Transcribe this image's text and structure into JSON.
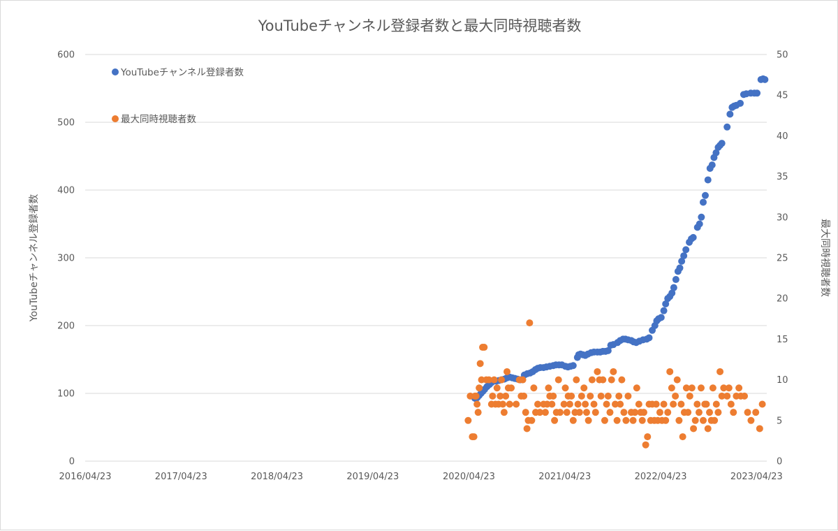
{
  "chart_data": {
    "type": "scatter",
    "title": "YouTubeチャンネル登録者数と最大同時視聴者数",
    "ylabel": "YouTubeチャンネル登録者数",
    "y2label": "最大同時視聴者数",
    "ylim": [
      0,
      600
    ],
    "y2lim": [
      0,
      50
    ],
    "yticks": [
      "0",
      "100",
      "200",
      "300",
      "400",
      "500",
      "600"
    ],
    "y2ticks": [
      "0",
      "5",
      "10",
      "15",
      "20",
      "25",
      "30",
      "35",
      "40",
      "45",
      "50"
    ],
    "xlim": [
      "2016-04-23",
      "2023-06-01"
    ],
    "xticks": [
      "2016/04/23",
      "2017/04/23",
      "2018/04/23",
      "2019/04/23",
      "2020/04/23",
      "2021/04/23",
      "2022/04/23",
      "2023/04/23"
    ],
    "xtick_dates": [
      "2016-04-23",
      "2017-04-23",
      "2018-04-23",
      "2019-04-23",
      "2020-04-23",
      "2021-04-23",
      "2022-04-23",
      "2023-04-23"
    ],
    "legend_position": "top-left",
    "grid": "horizontal",
    "series": [
      {
        "name": "YouTubeチャンネル登録者数",
        "color": "#4472c4",
        "axis": "left",
        "points": [
          [
            "2020-05-15",
            93
          ],
          [
            "2020-05-20",
            92
          ],
          [
            "2020-05-25",
            94
          ],
          [
            "2020-06-01",
            97
          ],
          [
            "2020-06-08",
            100
          ],
          [
            "2020-06-15",
            103
          ],
          [
            "2020-06-22",
            106
          ],
          [
            "2020-07-01",
            110
          ],
          [
            "2020-07-10",
            113
          ],
          [
            "2020-07-18",
            116
          ],
          [
            "2020-07-25",
            118
          ],
          [
            "2020-08-05",
            118
          ],
          [
            "2020-08-15",
            119
          ],
          [
            "2020-08-25",
            120
          ],
          [
            "2020-09-05",
            121
          ],
          [
            "2020-09-15",
            123
          ],
          [
            "2020-09-25",
            124
          ],
          [
            "2020-10-05",
            123
          ],
          [
            "2020-10-15",
            122
          ],
          [
            "2020-10-25",
            121
          ],
          [
            "2020-11-05",
            120
          ],
          [
            "2020-11-20",
            127
          ],
          [
            "2020-12-01",
            129
          ],
          [
            "2020-12-12",
            130
          ],
          [
            "2020-12-22",
            132
          ],
          [
            "2021-01-01",
            135
          ],
          [
            "2021-01-10",
            137
          ],
          [
            "2021-01-20",
            138
          ],
          [
            "2021-02-01",
            138
          ],
          [
            "2021-02-12",
            139
          ],
          [
            "2021-02-25",
            140
          ],
          [
            "2021-03-10",
            141
          ],
          [
            "2021-03-20",
            142
          ],
          [
            "2021-04-01",
            142
          ],
          [
            "2021-04-12",
            142
          ],
          [
            "2021-04-25",
            140
          ],
          [
            "2021-05-05",
            139
          ],
          [
            "2021-05-15",
            140
          ],
          [
            "2021-05-25",
            141
          ],
          [
            "2021-06-10",
            153
          ],
          [
            "2021-06-15",
            157
          ],
          [
            "2021-06-22",
            158
          ],
          [
            "2021-07-01",
            157
          ],
          [
            "2021-07-10",
            156
          ],
          [
            "2021-07-20",
            158
          ],
          [
            "2021-08-01",
            160
          ],
          [
            "2021-08-12",
            161
          ],
          [
            "2021-08-25",
            161
          ],
          [
            "2021-09-05",
            161
          ],
          [
            "2021-09-15",
            162
          ],
          [
            "2021-09-25",
            162
          ],
          [
            "2021-10-05",
            163
          ],
          [
            "2021-10-15",
            171
          ],
          [
            "2021-10-25",
            172
          ],
          [
            "2021-11-10",
            175
          ],
          [
            "2021-11-20",
            178
          ],
          [
            "2021-12-01",
            180
          ],
          [
            "2021-12-10",
            180
          ],
          [
            "2021-12-20",
            179
          ],
          [
            "2022-01-01",
            178
          ],
          [
            "2022-01-10",
            176
          ],
          [
            "2022-01-20",
            175
          ],
          [
            "2022-02-01",
            177
          ],
          [
            "2022-02-15",
            179
          ],
          [
            "2022-03-01",
            180
          ],
          [
            "2022-03-10",
            182
          ],
          [
            "2022-03-22",
            193
          ],
          [
            "2022-04-01",
            200
          ],
          [
            "2022-04-08",
            207
          ],
          [
            "2022-04-15",
            210
          ],
          [
            "2022-04-25",
            212
          ],
          [
            "2022-05-05",
            222
          ],
          [
            "2022-05-12",
            232
          ],
          [
            "2022-05-20",
            240
          ],
          [
            "2022-05-28",
            243
          ],
          [
            "2022-06-05",
            248
          ],
          [
            "2022-06-12",
            256
          ],
          [
            "2022-06-20",
            268
          ],
          [
            "2022-06-28",
            280
          ],
          [
            "2022-07-05",
            285
          ],
          [
            "2022-07-12",
            295
          ],
          [
            "2022-07-20",
            303
          ],
          [
            "2022-07-28",
            312
          ],
          [
            "2022-08-10",
            323
          ],
          [
            "2022-08-18",
            328
          ],
          [
            "2022-08-25",
            330
          ],
          [
            "2022-09-10",
            345
          ],
          [
            "2022-09-18",
            350
          ],
          [
            "2022-09-25",
            360
          ],
          [
            "2022-10-02",
            382
          ],
          [
            "2022-10-10",
            392
          ],
          [
            "2022-10-20",
            415
          ],
          [
            "2022-10-28",
            432
          ],
          [
            "2022-11-05",
            437
          ],
          [
            "2022-11-12",
            448
          ],
          [
            "2022-11-20",
            455
          ],
          [
            "2022-11-28",
            463
          ],
          [
            "2022-12-05",
            466
          ],
          [
            "2022-12-12",
            469
          ],
          [
            "2023-01-01",
            493
          ],
          [
            "2023-01-12",
            512
          ],
          [
            "2023-01-20",
            522
          ],
          [
            "2023-01-28",
            524
          ],
          [
            "2023-02-05",
            525
          ],
          [
            "2023-02-20",
            528
          ],
          [
            "2023-03-05",
            541
          ],
          [
            "2023-03-15",
            542
          ],
          [
            "2023-04-01",
            543
          ],
          [
            "2023-04-15",
            543
          ],
          [
            "2023-04-25",
            543
          ],
          [
            "2023-05-10",
            563
          ],
          [
            "2023-05-18",
            564
          ],
          [
            "2023-05-25",
            563
          ]
        ]
      },
      {
        "name": "最大同時視聴者数",
        "color": "#ed7d31",
        "axis": "right",
        "points": [
          [
            "2020-04-20",
            5
          ],
          [
            "2020-04-28",
            8
          ],
          [
            "2020-05-06",
            3
          ],
          [
            "2020-05-12",
            3
          ],
          [
            "2020-05-16",
            8
          ],
          [
            "2020-05-20",
            8
          ],
          [
            "2020-05-24",
            7
          ],
          [
            "2020-05-28",
            6
          ],
          [
            "2020-06-01",
            9
          ],
          [
            "2020-06-05",
            12
          ],
          [
            "2020-06-10",
            10
          ],
          [
            "2020-06-14",
            14
          ],
          [
            "2020-06-20",
            14
          ],
          [
            "2020-06-28",
            10
          ],
          [
            "2020-07-08",
            10
          ],
          [
            "2020-07-18",
            7
          ],
          [
            "2020-07-22",
            8
          ],
          [
            "2020-07-28",
            10
          ],
          [
            "2020-08-02",
            7
          ],
          [
            "2020-08-08",
            9
          ],
          [
            "2020-08-14",
            7
          ],
          [
            "2020-08-20",
            8
          ],
          [
            "2020-08-25",
            10
          ],
          [
            "2020-08-30",
            7
          ],
          [
            "2020-09-04",
            6
          ],
          [
            "2020-09-10",
            8
          ],
          [
            "2020-09-15",
            11
          ],
          [
            "2020-09-20",
            9
          ],
          [
            "2020-09-25",
            7
          ],
          [
            "2020-10-01",
            9
          ],
          [
            "2020-10-20",
            7
          ],
          [
            "2020-11-01",
            10
          ],
          [
            "2020-11-08",
            8
          ],
          [
            "2020-11-14",
            10
          ],
          [
            "2020-11-18",
            8
          ],
          [
            "2020-11-25",
            6
          ],
          [
            "2020-11-30",
            4
          ],
          [
            "2020-12-05",
            5
          ],
          [
            "2020-12-10",
            17
          ],
          [
            "2020-12-18",
            5
          ],
          [
            "2020-12-26",
            9
          ],
          [
            "2021-01-02",
            6
          ],
          [
            "2021-01-10",
            7
          ],
          [
            "2021-01-18",
            6
          ],
          [
            "2021-02-01",
            7
          ],
          [
            "2021-02-08",
            6
          ],
          [
            "2021-02-15",
            7
          ],
          [
            "2021-02-20",
            9
          ],
          [
            "2021-02-25",
            8
          ],
          [
            "2021-03-05",
            7
          ],
          [
            "2021-03-10",
            8
          ],
          [
            "2021-03-15",
            5
          ],
          [
            "2021-03-22",
            6
          ],
          [
            "2021-03-30",
            10
          ],
          [
            "2021-04-05",
            6
          ],
          [
            "2021-04-20",
            7
          ],
          [
            "2021-04-25",
            9
          ],
          [
            "2021-05-01",
            6
          ],
          [
            "2021-05-06",
            8
          ],
          [
            "2021-05-12",
            7
          ],
          [
            "2021-05-18",
            8
          ],
          [
            "2021-05-25",
            5
          ],
          [
            "2021-06-01",
            6
          ],
          [
            "2021-06-06",
            10
          ],
          [
            "2021-06-12",
            7
          ],
          [
            "2021-06-18",
            6
          ],
          [
            "2021-06-26",
            8
          ],
          [
            "2021-07-05",
            9
          ],
          [
            "2021-07-10",
            7
          ],
          [
            "2021-07-15",
            6
          ],
          [
            "2021-07-22",
            5
          ],
          [
            "2021-07-29",
            8
          ],
          [
            "2021-08-05",
            10
          ],
          [
            "2021-08-12",
            7
          ],
          [
            "2021-08-18",
            6
          ],
          [
            "2021-08-25",
            11
          ],
          [
            "2021-09-02",
            10
          ],
          [
            "2021-09-08",
            8
          ],
          [
            "2021-09-15",
            10
          ],
          [
            "2021-09-22",
            5
          ],
          [
            "2021-09-29",
            7
          ],
          [
            "2021-10-05",
            8
          ],
          [
            "2021-10-12",
            6
          ],
          [
            "2021-10-18",
            10
          ],
          [
            "2021-10-25",
            11
          ],
          [
            "2021-11-01",
            7
          ],
          [
            "2021-11-08",
            5
          ],
          [
            "2021-11-15",
            8
          ],
          [
            "2021-11-20",
            7
          ],
          [
            "2021-11-26",
            10
          ],
          [
            "2021-12-04",
            6
          ],
          [
            "2021-12-12",
            5
          ],
          [
            "2021-12-20",
            8
          ],
          [
            "2022-01-01",
            6
          ],
          [
            "2022-01-08",
            5
          ],
          [
            "2022-01-15",
            6
          ],
          [
            "2022-01-22",
            9
          ],
          [
            "2022-01-30",
            7
          ],
          [
            "2022-02-06",
            6
          ],
          [
            "2022-02-12",
            5
          ],
          [
            "2022-02-18",
            6
          ],
          [
            "2022-02-25",
            2
          ],
          [
            "2022-03-04",
            3
          ],
          [
            "2022-03-10",
            7
          ],
          [
            "2022-03-16",
            5
          ],
          [
            "2022-03-22",
            7
          ],
          [
            "2022-03-30",
            5
          ],
          [
            "2022-04-06",
            7
          ],
          [
            "2022-04-12",
            5
          ],
          [
            "2022-04-20",
            6
          ],
          [
            "2022-04-28",
            5
          ],
          [
            "2022-05-05",
            7
          ],
          [
            "2022-05-12",
            5
          ],
          [
            "2022-05-20",
            6
          ],
          [
            "2022-05-28",
            11
          ],
          [
            "2022-06-04",
            9
          ],
          [
            "2022-06-10",
            7
          ],
          [
            "2022-06-18",
            8
          ],
          [
            "2022-06-25",
            10
          ],
          [
            "2022-07-02",
            5
          ],
          [
            "2022-07-10",
            7
          ],
          [
            "2022-07-16",
            3
          ],
          [
            "2022-07-22",
            6
          ],
          [
            "2022-07-30",
            9
          ],
          [
            "2022-08-05",
            6
          ],
          [
            "2022-08-12",
            8
          ],
          [
            "2022-08-20",
            9
          ],
          [
            "2022-08-26",
            4
          ],
          [
            "2022-09-02",
            5
          ],
          [
            "2022-09-09",
            7
          ],
          [
            "2022-09-16",
            6
          ],
          [
            "2022-09-24",
            9
          ],
          [
            "2022-10-02",
            5
          ],
          [
            "2022-10-08",
            7
          ],
          [
            "2022-10-14",
            7
          ],
          [
            "2022-10-20",
            4
          ],
          [
            "2022-10-26",
            6
          ],
          [
            "2022-11-02",
            5
          ],
          [
            "2022-11-08",
            9
          ],
          [
            "2022-11-14",
            5
          ],
          [
            "2022-11-21",
            7
          ],
          [
            "2022-11-28",
            6
          ],
          [
            "2022-12-05",
            11
          ],
          [
            "2022-12-12",
            8
          ],
          [
            "2022-12-19",
            9
          ],
          [
            "2023-01-01",
            8
          ],
          [
            "2023-01-08",
            9
          ],
          [
            "2023-01-16",
            7
          ],
          [
            "2023-01-25",
            6
          ],
          [
            "2023-02-05",
            8
          ],
          [
            "2023-02-15",
            9
          ],
          [
            "2023-02-22",
            8
          ],
          [
            "2023-03-08",
            8
          ],
          [
            "2023-03-20",
            6
          ],
          [
            "2023-04-02",
            5
          ],
          [
            "2023-04-20",
            6
          ],
          [
            "2023-05-05",
            4
          ],
          [
            "2023-05-15",
            7
          ]
        ]
      }
    ]
  }
}
